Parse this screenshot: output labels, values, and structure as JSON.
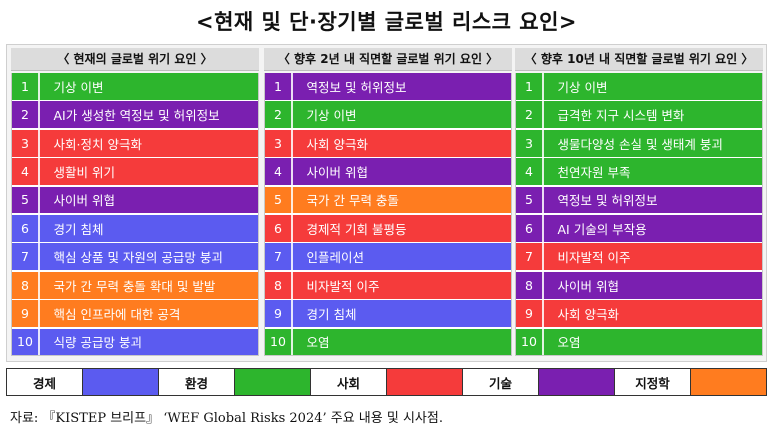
{
  "title": "<현재 및 단·장기별 글로벌 리스크 요인>",
  "colors": {
    "경제": "#5b5bf0",
    "환경": "#2db52d",
    "사회": "#f53b3b",
    "기술": "#7a1fb0",
    "지정학": "#ff7c1f"
  },
  "chart_data": {
    "type": "table",
    "columns": [
      {
        "header": "〈  현재의 글로벌 위기 요인  〉",
        "rows": [
          {
            "rank": "1",
            "label": "기상 이변",
            "category": "환경"
          },
          {
            "rank": "2",
            "label": "AI가 생성한 역정보 및 허위정보",
            "category": "기술"
          },
          {
            "rank": "3",
            "label": "사회·정치 양극화",
            "category": "사회"
          },
          {
            "rank": "4",
            "label": "생활비 위기",
            "category": "사회"
          },
          {
            "rank": "5",
            "label": "사이버 위협",
            "category": "기술"
          },
          {
            "rank": "6",
            "label": "경기 침체",
            "category": "경제"
          },
          {
            "rank": "7",
            "label": "핵심 상품 및 자원의 공급망 붕괴",
            "category": "경제"
          },
          {
            "rank": "8",
            "label": "국가 간 무력 충돌 확대 및 발발",
            "category": "지정학"
          },
          {
            "rank": "9",
            "label": "핵심 인프라에 대한 공격",
            "category": "지정학"
          },
          {
            "rank": "10",
            "label": "식량 공급망 붕괴",
            "category": "경제"
          }
        ]
      },
      {
        "header": "〈  향후 2년 내 직면할 글로벌 위기 요인  〉",
        "rows": [
          {
            "rank": "1",
            "label": "역정보 및 허위정보",
            "category": "기술"
          },
          {
            "rank": "2",
            "label": "기상 이변",
            "category": "환경"
          },
          {
            "rank": "3",
            "label": "사회 양극화",
            "category": "사회"
          },
          {
            "rank": "4",
            "label": "사이버 위협",
            "category": "기술"
          },
          {
            "rank": "5",
            "label": "국가 간 무력 충돌",
            "category": "지정학"
          },
          {
            "rank": "6",
            "label": "경제적 기회 불평등",
            "category": "사회"
          },
          {
            "rank": "7",
            "label": "인플레이션",
            "category": "경제"
          },
          {
            "rank": "8",
            "label": "비자발적 이주",
            "category": "사회"
          },
          {
            "rank": "9",
            "label": "경기 침체",
            "category": "경제"
          },
          {
            "rank": "10",
            "label": "오염",
            "category": "환경"
          }
        ]
      },
      {
        "header": "〈  향후 10년 내 직면할 글로벌 위기 요인  〉",
        "rows": [
          {
            "rank": "1",
            "label": "기상 이변",
            "category": "환경"
          },
          {
            "rank": "2",
            "label": "급격한 지구 시스템 변화",
            "category": "환경"
          },
          {
            "rank": "3",
            "label": "생물다양성 손실 및 생태계 붕괴",
            "category": "환경"
          },
          {
            "rank": "4",
            "label": "천연자원 부족",
            "category": "환경"
          },
          {
            "rank": "5",
            "label": "역정보 및 허위정보",
            "category": "기술"
          },
          {
            "rank": "6",
            "label": "AI 기술의 부작용",
            "category": "기술"
          },
          {
            "rank": "7",
            "label": "비자발적 이주",
            "category": "사회"
          },
          {
            "rank": "8",
            "label": "사이버 위협",
            "category": "기술"
          },
          {
            "rank": "9",
            "label": "사회 양극화",
            "category": "사회"
          },
          {
            "rank": "10",
            "label": "오염",
            "category": "환경"
          }
        ]
      }
    ],
    "legend": [
      "경제",
      "환경",
      "사회",
      "기술",
      "지정학"
    ]
  },
  "source": "자료: 『KISTEP 브리프』 ‘WEF Global Risks 2024’ 주요 내용 및 시사점."
}
